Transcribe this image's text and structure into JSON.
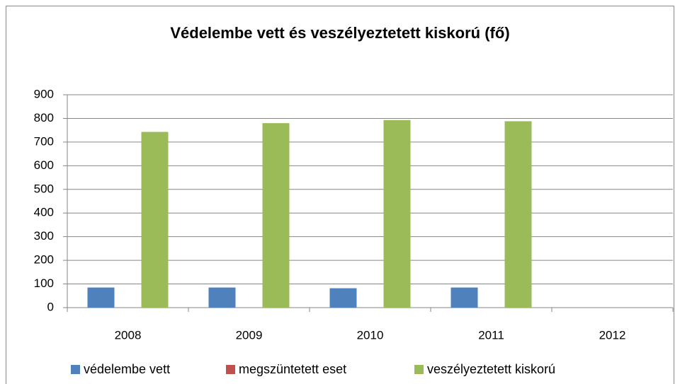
{
  "chart_data": {
    "type": "bar",
    "title": "Védelembe vett és veszélyeztetett kiskorú (fő)",
    "categories": [
      "2008",
      "2009",
      "2010",
      "2011",
      "2012"
    ],
    "series": [
      {
        "name": "védelembe vett",
        "color": "#4f81bd",
        "values": [
          85,
          85,
          82,
          85,
          null
        ]
      },
      {
        "name": "megszüntetett eset",
        "color": "#c0504d",
        "values": [
          0,
          0,
          0,
          0,
          null
        ]
      },
      {
        "name": "veszélyeztetett kiskorú",
        "color": "#9bbb59",
        "values": [
          743,
          780,
          793,
          788,
          null
        ]
      }
    ],
    "ylim": [
      0,
      900
    ],
    "yticks": [
      0,
      100,
      200,
      300,
      400,
      500,
      600,
      700,
      800,
      900
    ],
    "grid": true,
    "legend": "bottom"
  }
}
